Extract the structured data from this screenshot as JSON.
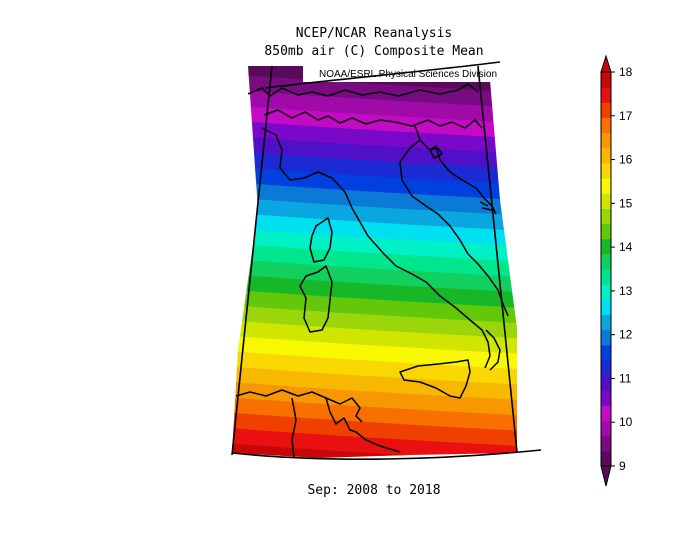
{
  "title": {
    "line1": "NCEP/NCAR Reanalysis",
    "line2": "850mb air (C) Composite Mean"
  },
  "credit": "NOAA/ESRL Physical Sciences Division",
  "period": "Sep: 2008 to 2018",
  "colorbar": {
    "min": 9,
    "max": 18,
    "tick_labels": [
      "9",
      "10",
      "11",
      "12",
      "13",
      "14",
      "15",
      "16",
      "17",
      "18"
    ],
    "colors": [
      "#5a0a5a",
      "#780a82",
      "#a00aa8",
      "#c50ac5",
      "#7a08c8",
      "#5010c8",
      "#1c2ad4",
      "#0040e0",
      "#0a7ad6",
      "#0aa6e0",
      "#00e0f0",
      "#00f0c8",
      "#00e68c",
      "#12d060",
      "#16b828",
      "#64c80a",
      "#9ad60a",
      "#d0e600",
      "#f8f800",
      "#f8d800",
      "#f8b800",
      "#f89800",
      "#f87000",
      "#f04000",
      "#e81010",
      "#c80808"
    ]
  },
  "map": {
    "variable": "850mb air temperature",
    "units": "C",
    "gradient": "warmer toward south",
    "band_colors": [
      "#5a0a5a",
      "#780a82",
      "#a00aa8",
      "#c50ac5",
      "#7a08c8",
      "#5010c8",
      "#1c2ad4",
      "#0040e0",
      "#0a7ad6",
      "#0aa6e0",
      "#00e0f0",
      "#00f0c8",
      "#00e68c",
      "#12d060",
      "#16b828",
      "#64c80a",
      "#9ad60a",
      "#d0e600",
      "#f8f800",
      "#f8d800",
      "#f8b800",
      "#f89800",
      "#f87000",
      "#f04000",
      "#e81010",
      "#c80808"
    ]
  }
}
